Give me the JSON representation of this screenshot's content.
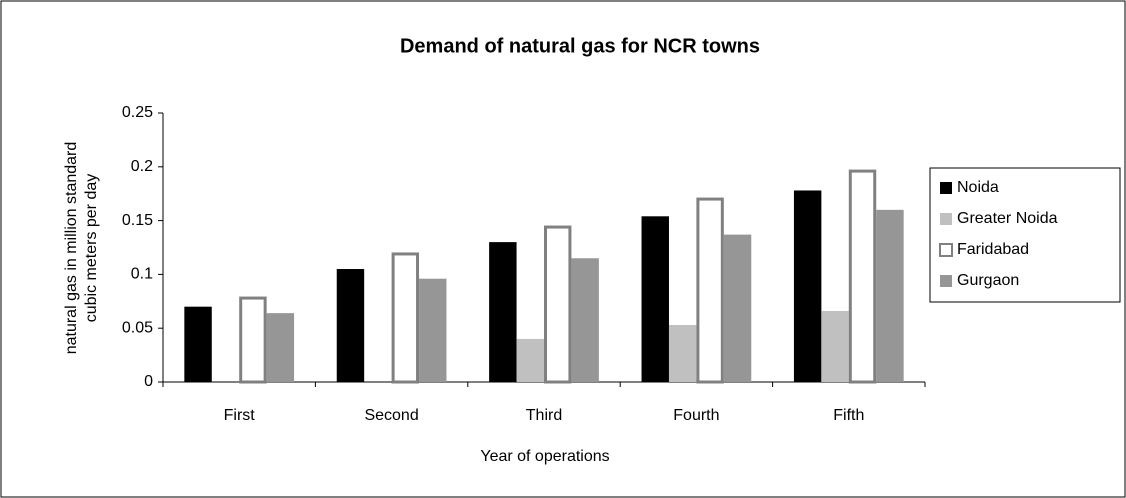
{
  "chart_data": {
    "type": "bar",
    "title": "Demand of natural gas for NCR towns",
    "x_label": "Year of operations",
    "y_label": [
      "natural gas in million standard",
      "cubic meters per day"
    ],
    "categories": [
      "First",
      "Second",
      "Third",
      "Fourth",
      "Fifth"
    ],
    "series": [
      {
        "name": "Noida",
        "color": "#000000",
        "values": [
          0.07,
          0.105,
          0.13,
          0.154,
          0.178
        ]
      },
      {
        "name": "Greater Noida",
        "color": "#c0c0c0",
        "values": [
          0,
          0,
          0.04,
          0.053,
          0.066
        ]
      },
      {
        "name": "Faridabad",
        "color": "#808080",
        "outline": true,
        "values": [
          0.078,
          0.119,
          0.144,
          0.17,
          0.196
        ]
      },
      {
        "name": "Gurgaon",
        "color": "#969696",
        "values": [
          0.064,
          0.096,
          0.115,
          0.137,
          0.16
        ]
      }
    ],
    "ylim": [
      0,
      0.25
    ],
    "yticks": [
      0,
      0.05,
      0.1,
      0.15,
      0.2,
      0.25
    ],
    "grid": false,
    "legend": "right"
  }
}
